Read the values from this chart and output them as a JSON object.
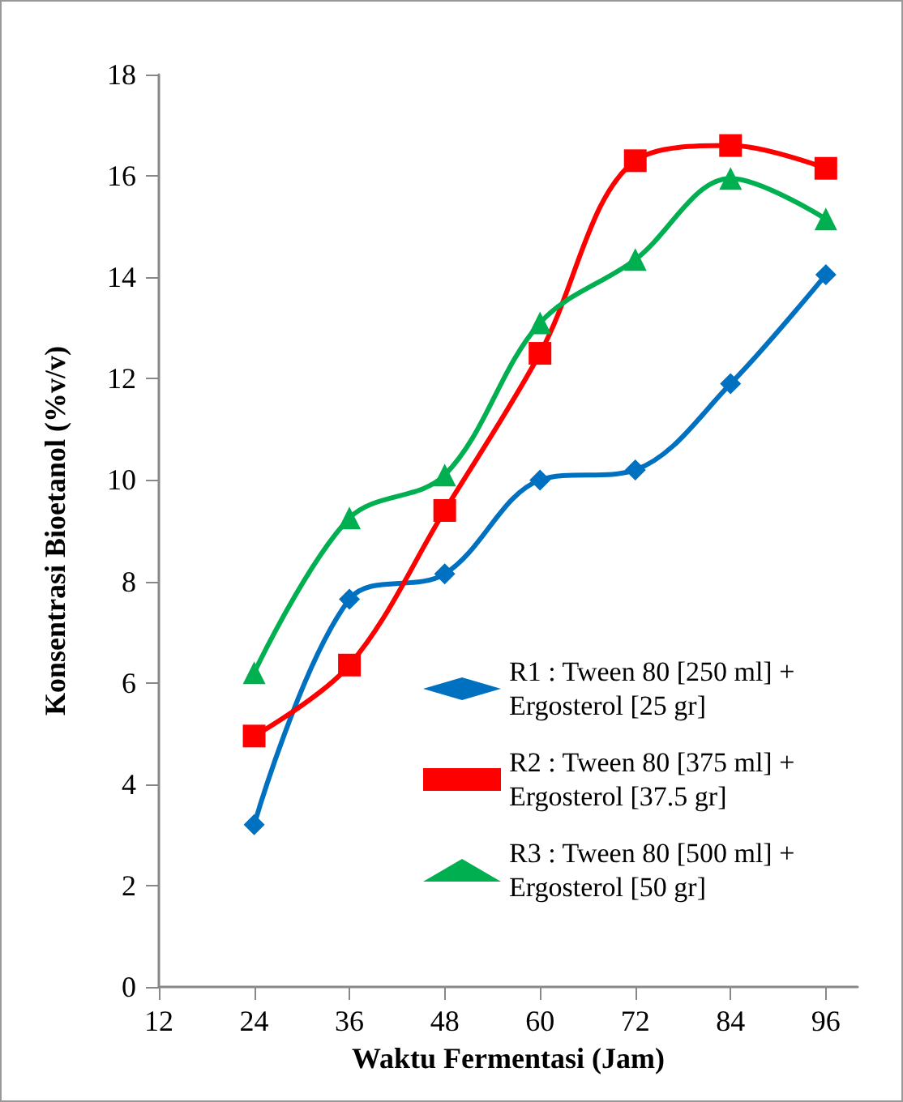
{
  "chart_data": {
    "type": "line",
    "xlabel": "Waktu Fermentasi (Jam)",
    "ylabel": "Konsentrasi Bioetanol (%v/v)",
    "x": [
      24,
      36,
      48,
      60,
      72,
      84,
      96
    ],
    "series": [
      {
        "name": "R1 : Tween 80 [250 ml] + Ergosterol [25 gr]",
        "color": "#0070c0",
        "marker": "diamond",
        "values": [
          3.2,
          7.65,
          8.15,
          10.0,
          10.2,
          11.9,
          14.05
        ]
      },
      {
        "name": "R2 : Tween 80 [375 ml] + Ergosterol [37.5 gr]",
        "color": "#ff0000",
        "marker": "square",
        "values": [
          4.95,
          6.35,
          9.4,
          12.5,
          16.3,
          16.6,
          16.15
        ]
      },
      {
        "name": "R3 : Tween 80 [500 ml] + Ergosterol [50 gr]",
        "color": "#00b050",
        "marker": "triangle",
        "values": [
          6.2,
          9.25,
          10.1,
          13.1,
          14.35,
          15.95,
          15.15
        ]
      }
    ],
    "xlim": [
      12,
      100
    ],
    "xticks": [
      12,
      24,
      36,
      48,
      60,
      72,
      84,
      96
    ],
    "ylim": [
      0,
      18
    ],
    "yticks": [
      0,
      2,
      4,
      6,
      8,
      10,
      12,
      14,
      16,
      18
    ],
    "grid": false,
    "legend": "bottom right",
    "line_style": "solid"
  }
}
